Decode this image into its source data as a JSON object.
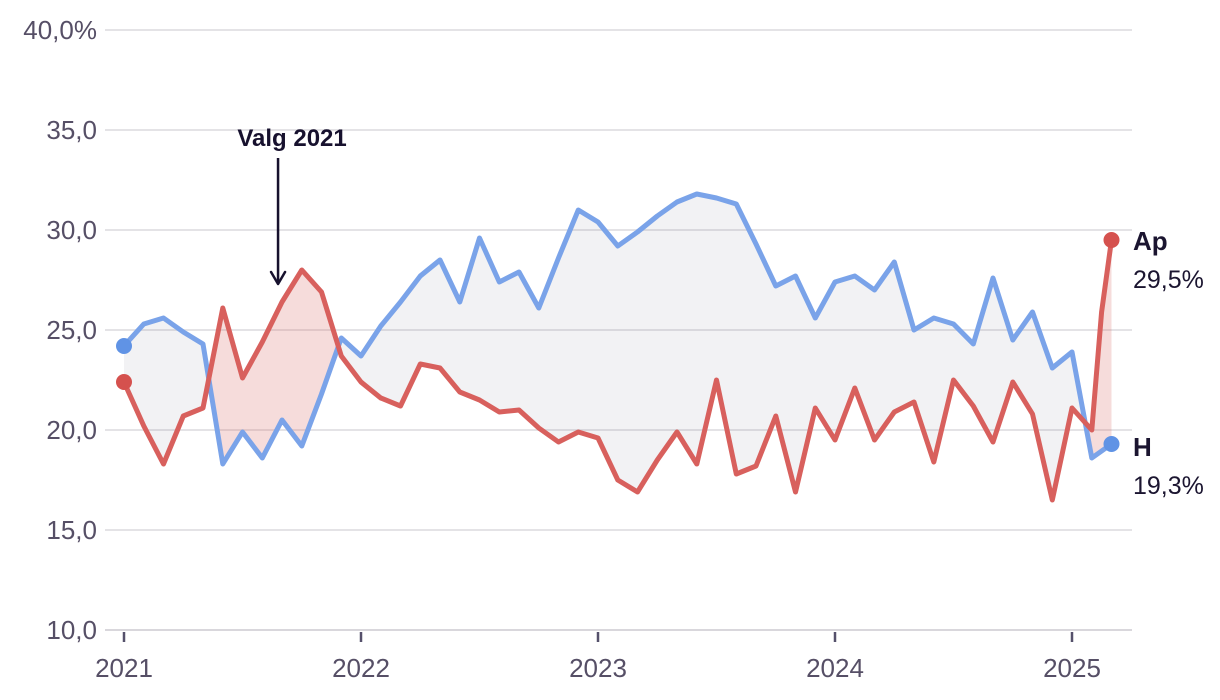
{
  "chart_data": {
    "type": "line",
    "description": "Party support over time, monthly values in percent",
    "x_axis": {
      "unit": "months since January 2021",
      "ticks": [
        {
          "index": 0,
          "label": "2021"
        },
        {
          "index": 12,
          "label": "2022"
        },
        {
          "index": 24,
          "label": "2023"
        },
        {
          "index": 36,
          "label": "2024"
        },
        {
          "index": 48,
          "label": "2025"
        }
      ]
    },
    "y_axis": {
      "min": 10,
      "max": 40,
      "step": 5,
      "grid": true,
      "labels": [
        {
          "value": 40,
          "label": "40,0%"
        },
        {
          "value": 35,
          "label": "35,0"
        },
        {
          "value": 30,
          "label": "30,0"
        },
        {
          "value": 25,
          "label": "25,0"
        },
        {
          "value": 20,
          "label": "20,0"
        },
        {
          "value": 15,
          "label": "15,0"
        },
        {
          "value": 10,
          "label": "10,0"
        }
      ]
    },
    "series": [
      {
        "id": "ap",
        "name": "Ap",
        "color": "#d8605d",
        "dot_color": "#d5514e",
        "fill_when_leading": "rgba(216,96,93,0.22)",
        "points": [
          [
            0,
            22.4
          ],
          [
            1,
            20.2
          ],
          [
            2,
            18.3
          ],
          [
            3,
            20.7
          ],
          [
            4,
            21.1
          ],
          [
            5,
            26.1
          ],
          [
            6,
            22.6
          ],
          [
            7,
            24.4
          ],
          [
            8,
            26.4
          ],
          [
            9,
            28.0
          ],
          [
            10,
            26.9
          ],
          [
            11,
            23.7
          ],
          [
            12,
            22.4
          ],
          [
            13,
            21.6
          ],
          [
            14,
            21.2
          ],
          [
            15,
            23.3
          ],
          [
            16,
            23.1
          ],
          [
            17,
            21.9
          ],
          [
            18,
            21.5
          ],
          [
            19,
            20.9
          ],
          [
            20,
            21.0
          ],
          [
            21,
            20.1
          ],
          [
            22,
            19.4
          ],
          [
            23,
            19.9
          ],
          [
            24,
            19.6
          ],
          [
            25,
            17.5
          ],
          [
            26,
            16.9
          ],
          [
            27,
            18.5
          ],
          [
            28,
            19.9
          ],
          [
            29,
            18.3
          ],
          [
            30,
            22.5
          ],
          [
            31,
            17.8
          ],
          [
            32,
            18.2
          ],
          [
            33,
            20.7
          ],
          [
            34,
            16.9
          ],
          [
            35,
            21.1
          ],
          [
            36,
            19.5
          ],
          [
            37,
            22.1
          ],
          [
            38,
            19.5
          ],
          [
            39,
            20.9
          ],
          [
            40,
            21.4
          ],
          [
            41,
            18.4
          ],
          [
            42,
            22.5
          ],
          [
            43,
            21.2
          ],
          [
            44,
            19.4
          ],
          [
            45,
            22.4
          ],
          [
            46,
            20.8
          ],
          [
            47,
            16.5
          ],
          [
            48,
            21.1
          ],
          [
            49,
            20.0
          ],
          [
            49.5,
            25.9
          ],
          [
            50,
            29.5
          ]
        ]
      },
      {
        "id": "h",
        "name": "H",
        "color": "#7aa3e9",
        "dot_color": "#6093e5",
        "fill_when_leading": "rgba(108,108,130,0.09)",
        "points": [
          [
            0,
            24.2
          ],
          [
            1,
            25.3
          ],
          [
            2,
            25.6
          ],
          [
            3,
            24.9
          ],
          [
            4,
            24.3
          ],
          [
            5,
            18.3
          ],
          [
            6,
            19.9
          ],
          [
            7,
            18.6
          ],
          [
            8,
            20.5
          ],
          [
            9,
            19.2
          ],
          [
            10,
            21.8
          ],
          [
            11,
            24.6
          ],
          [
            12,
            23.7
          ],
          [
            13,
            25.2
          ],
          [
            14,
            26.4
          ],
          [
            15,
            27.7
          ],
          [
            16,
            28.5
          ],
          [
            17,
            26.4
          ],
          [
            18,
            29.6
          ],
          [
            19,
            27.4
          ],
          [
            20,
            27.9
          ],
          [
            21,
            26.1
          ],
          [
            22,
            28.6
          ],
          [
            23,
            31.0
          ],
          [
            24,
            30.4
          ],
          [
            25,
            29.2
          ],
          [
            26,
            29.9
          ],
          [
            27,
            30.7
          ],
          [
            28,
            31.4
          ],
          [
            29,
            31.8
          ],
          [
            30,
            31.6
          ],
          [
            31,
            31.3
          ],
          [
            32,
            29.3
          ],
          [
            33,
            27.2
          ],
          [
            34,
            27.7
          ],
          [
            35,
            25.6
          ],
          [
            36,
            27.4
          ],
          [
            37,
            27.7
          ],
          [
            38,
            27.0
          ],
          [
            39,
            28.4
          ],
          [
            40,
            25.0
          ],
          [
            41,
            25.6
          ],
          [
            42,
            25.3
          ],
          [
            43,
            24.3
          ],
          [
            44,
            27.6
          ],
          [
            45,
            24.5
          ],
          [
            46,
            25.9
          ],
          [
            47,
            23.1
          ],
          [
            48,
            23.9
          ],
          [
            49,
            18.6
          ],
          [
            50,
            19.3
          ]
        ]
      }
    ],
    "annotation": {
      "text": "Valg 2021",
      "x_index": 7.8,
      "arrow_top_y_value": 33.6,
      "arrow_tip_y_value": 27.3
    },
    "end_labels": [
      {
        "series": "ap",
        "label": "Ap",
        "value": "29,5%"
      },
      {
        "series": "h",
        "label": "H",
        "value": "19,3%"
      }
    ],
    "colors": {
      "grid": "#e4e3e6",
      "axis_line": "#d9d7dc",
      "tick": "#55506b",
      "axis_text": "#564f66",
      "annotation_text": "#17112e",
      "end_label_text": "#1b1530",
      "background": "#ffffff"
    }
  }
}
